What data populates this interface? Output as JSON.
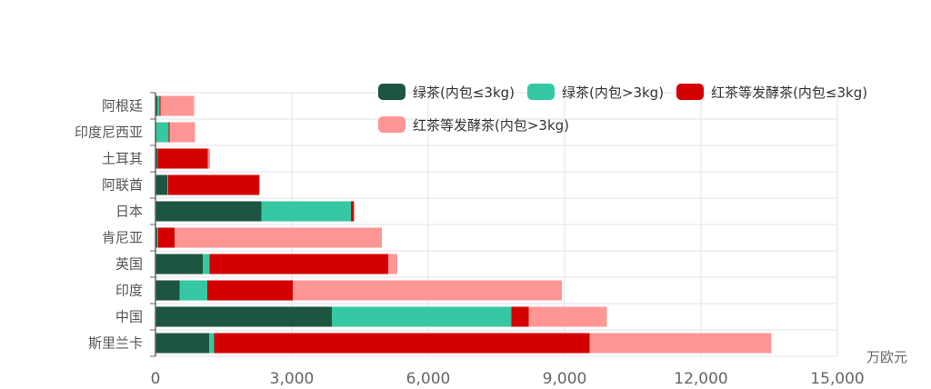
{
  "chart_data": {
    "type": "bar",
    "orientation": "horizontal",
    "stacked": true,
    "categories": [
      "斯里兰卡",
      "中国",
      "印度",
      "英国",
      "肯尼亚",
      "日本",
      "阿联酋",
      "土耳其",
      "印度尼西亚",
      "阿根廷"
    ],
    "series": [
      {
        "name": "绿茶(内包≤3kg)",
        "color": "#1d5540",
        "values": [
          1180,
          3880,
          530,
          1040,
          40,
          2330,
          260,
          40,
          20,
          40
        ]
      },
      {
        "name": "绿茶(内包>3kg)",
        "color": "#36c8a2",
        "values": [
          110,
          3950,
          610,
          150,
          20,
          1970,
          20,
          10,
          270,
          50
        ]
      },
      {
        "name": "红茶等发酵茶(内包≤3kg)",
        "color": "#d40000",
        "values": [
          8260,
          380,
          1880,
          3930,
          360,
          60,
          2000,
          1100,
          20,
          20
        ]
      },
      {
        "name": "红茶等发酵茶(内包>3kg)",
        "color": "#ff9696",
        "values": [
          4000,
          1720,
          5920,
          200,
          4560,
          20,
          20,
          50,
          560,
          740
        ]
      }
    ],
    "xlim": [
      0,
      15000
    ],
    "xticks": [
      "0",
      "3,000",
      "6,000",
      "9,000",
      "12,000",
      "15,000"
    ],
    "xunit": "万欧元",
    "grid": true,
    "legend_position": "top-right"
  }
}
